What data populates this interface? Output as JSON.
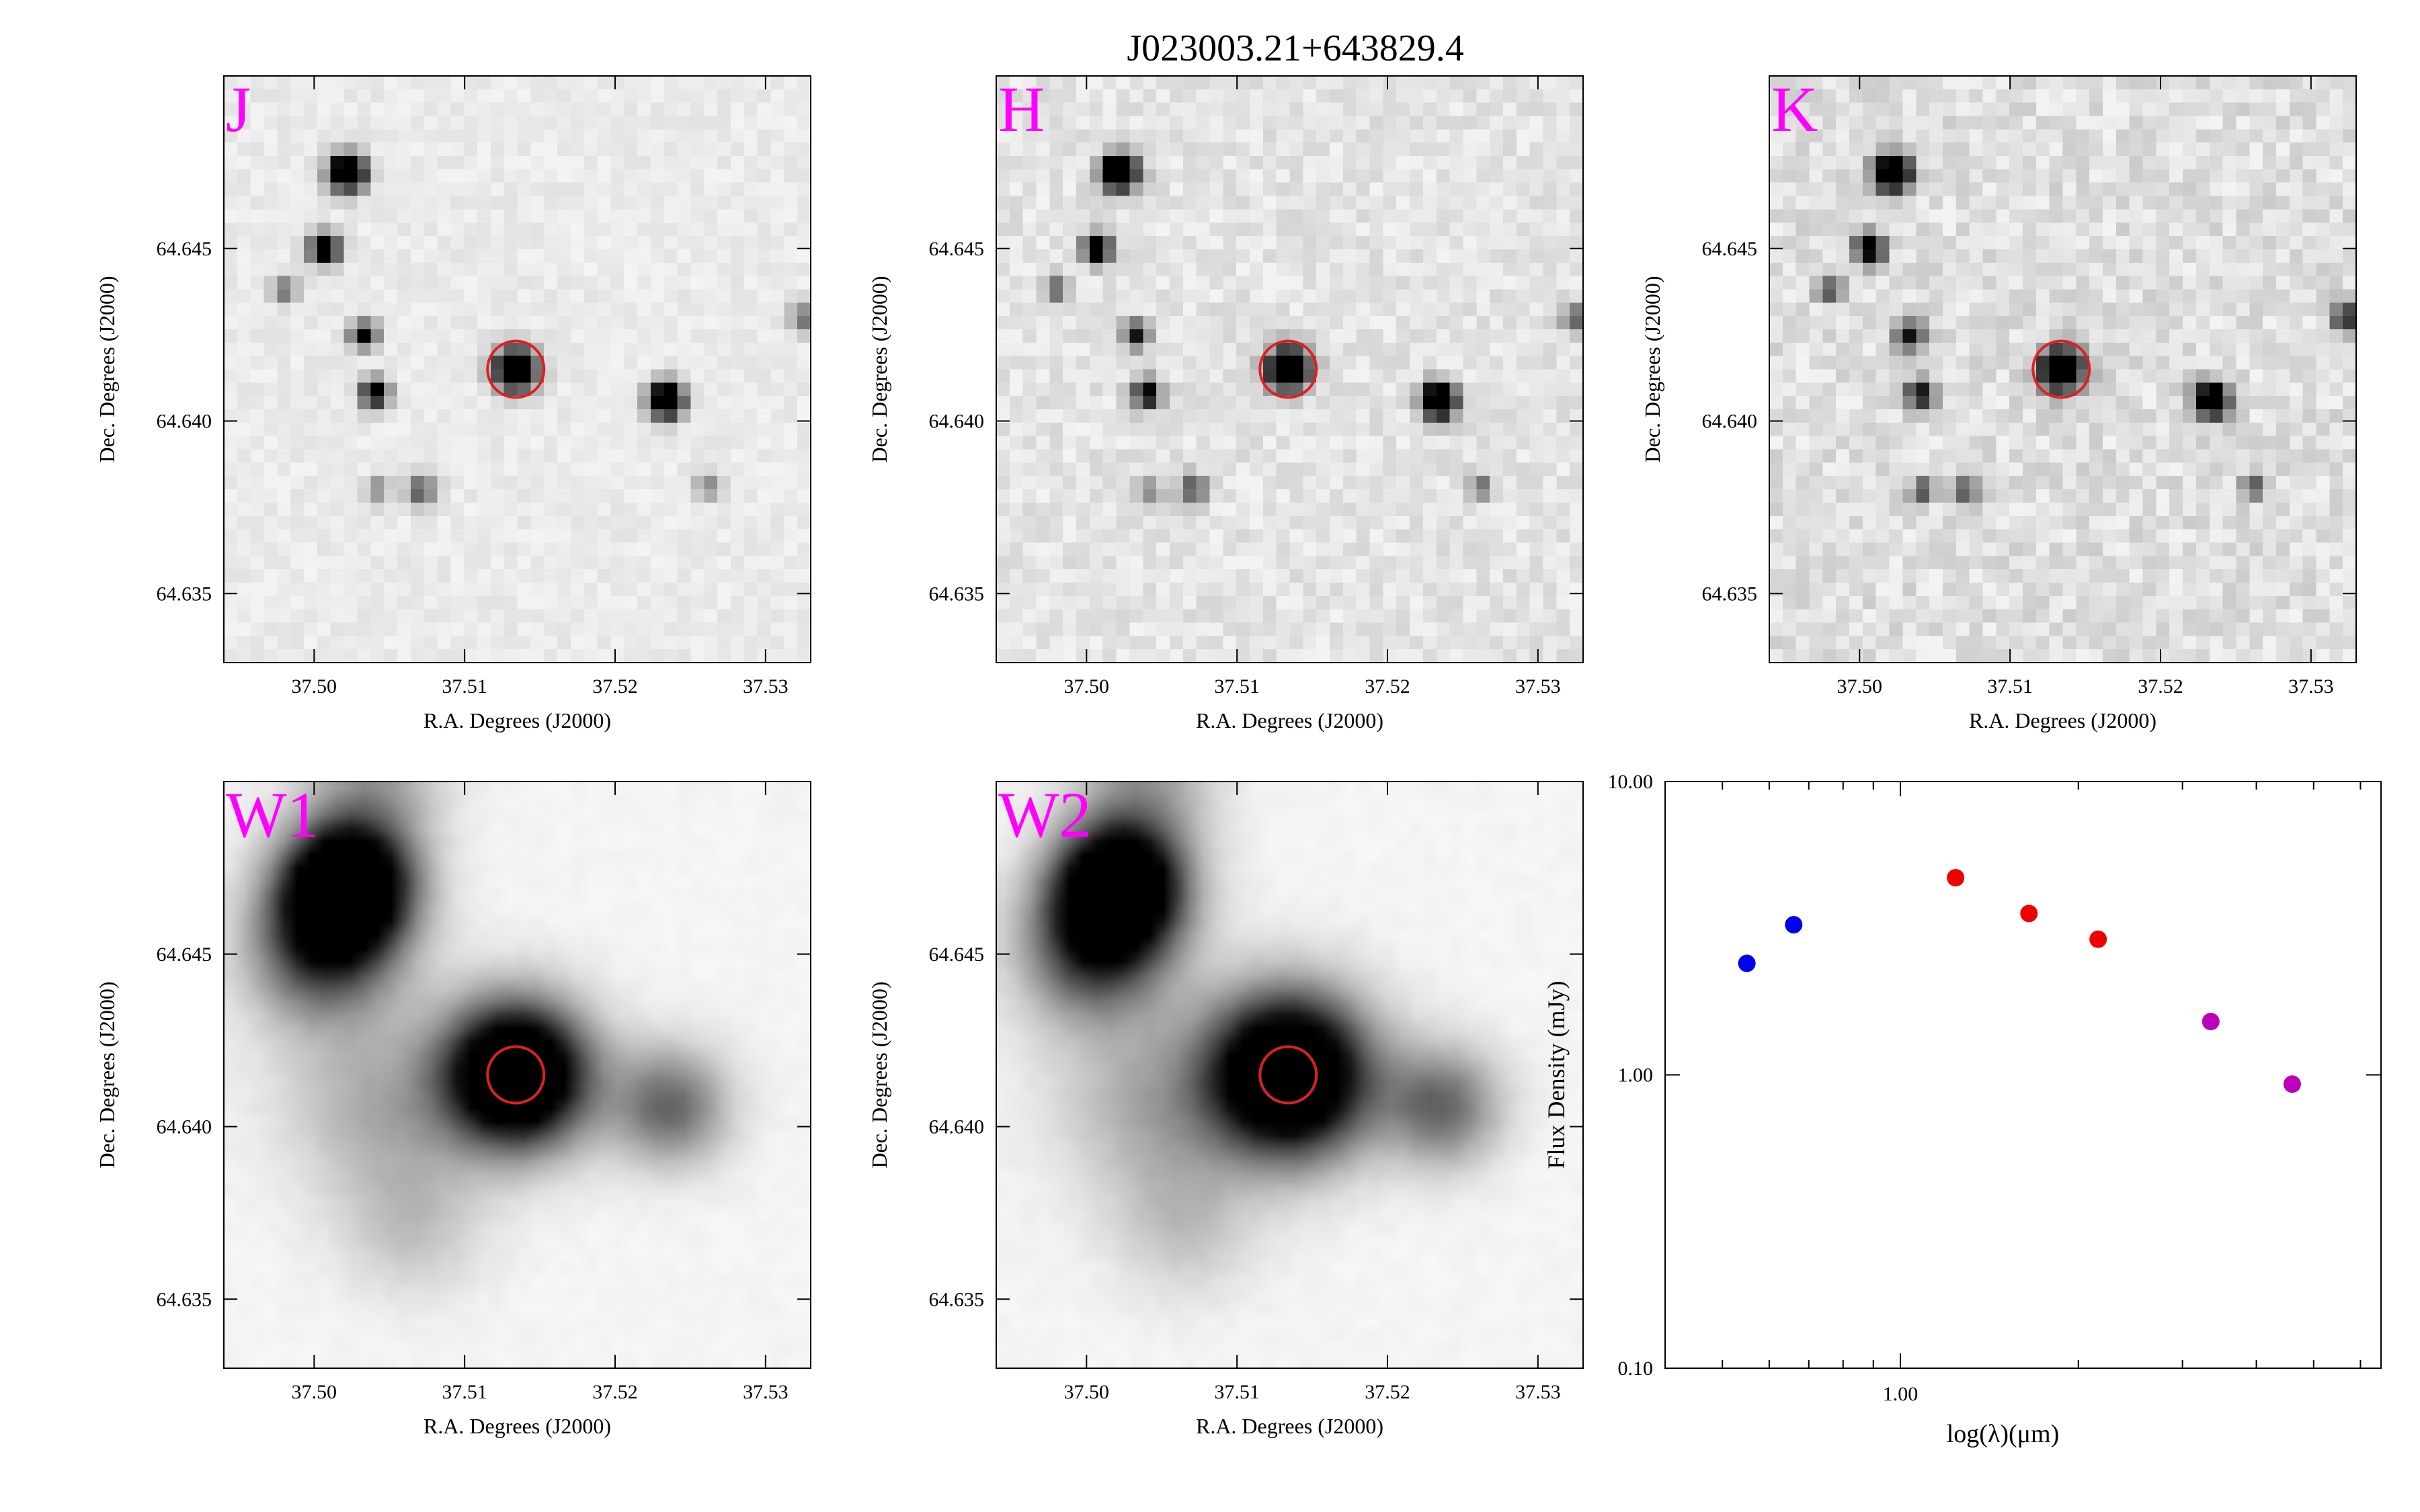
{
  "figure": {
    "title": "J023003.21+643829.4"
  },
  "panel_axes": {
    "xlabel": "R.A. Degrees (J2000)",
    "ylabel": "Dec. Degrees (J2000)",
    "xlim": [
      37.494,
      37.533
    ],
    "ylim": [
      64.633,
      64.65
    ],
    "xticks": [
      "37.50",
      "37.51",
      "37.52",
      "37.53"
    ],
    "xtick_values": [
      37.5,
      37.51,
      37.52,
      37.53
    ],
    "yticks": [
      "64.635",
      "64.640",
      "64.645"
    ],
    "ytick_values": [
      64.635,
      64.64,
      64.645
    ],
    "target": {
      "ra": 37.5134,
      "dec": 64.6415,
      "color": "#e02020"
    }
  },
  "image_panels": [
    {
      "band": "J",
      "style": "sharp",
      "sources": [
        {
          "ra": 37.5022,
          "dec": 64.6472,
          "flux": 1.0,
          "size": 1.0
        },
        {
          "ra": 37.5007,
          "dec": 64.645,
          "flux": 0.85,
          "size": 0.8
        },
        {
          "ra": 37.498,
          "dec": 64.6438,
          "flux": 0.35,
          "size": 0.7
        },
        {
          "ra": 37.5033,
          "dec": 64.6425,
          "flux": 0.6,
          "size": 0.75
        },
        {
          "ra": 37.504,
          "dec": 64.6408,
          "flux": 0.7,
          "size": 0.8
        },
        {
          "ra": 37.5134,
          "dec": 64.6415,
          "flux": 1.0,
          "size": 1.15
        },
        {
          "ra": 37.5234,
          "dec": 64.6406,
          "flux": 1.0,
          "size": 0.95
        },
        {
          "ra": 37.5071,
          "dec": 64.638,
          "flux": 0.4,
          "size": 0.8
        },
        {
          "ra": 37.5042,
          "dec": 64.638,
          "flux": 0.25,
          "size": 0.7
        },
        {
          "ra": 37.5262,
          "dec": 64.6381,
          "flux": 0.25,
          "size": 0.7
        },
        {
          "ra": 37.5325,
          "dec": 64.643,
          "flux": 0.3,
          "size": 0.8
        }
      ]
    },
    {
      "band": "H",
      "style": "sharp",
      "sources": [
        {
          "ra": 37.5022,
          "dec": 64.6472,
          "flux": 1.0,
          "size": 1.0
        },
        {
          "ra": 37.5007,
          "dec": 64.645,
          "flux": 0.8,
          "size": 0.8
        },
        {
          "ra": 37.498,
          "dec": 64.6438,
          "flux": 0.35,
          "size": 0.7
        },
        {
          "ra": 37.5033,
          "dec": 64.6425,
          "flux": 0.55,
          "size": 0.75
        },
        {
          "ra": 37.504,
          "dec": 64.6408,
          "flux": 0.65,
          "size": 0.8
        },
        {
          "ra": 37.5134,
          "dec": 64.6415,
          "flux": 1.0,
          "size": 1.15
        },
        {
          "ra": 37.5234,
          "dec": 64.6406,
          "flux": 1.0,
          "size": 0.95
        },
        {
          "ra": 37.5071,
          "dec": 64.638,
          "flux": 0.4,
          "size": 0.8
        },
        {
          "ra": 37.5042,
          "dec": 64.638,
          "flux": 0.25,
          "size": 0.7
        },
        {
          "ra": 37.5262,
          "dec": 64.6381,
          "flux": 0.3,
          "size": 0.7
        },
        {
          "ra": 37.5325,
          "dec": 64.643,
          "flux": 0.35,
          "size": 0.8
        }
      ]
    },
    {
      "band": "K",
      "style": "sharp",
      "sources": [
        {
          "ra": 37.5022,
          "dec": 64.6472,
          "flux": 1.0,
          "size": 1.0
        },
        {
          "ra": 37.5007,
          "dec": 64.645,
          "flux": 0.75,
          "size": 0.8
        },
        {
          "ra": 37.498,
          "dec": 64.6438,
          "flux": 0.4,
          "size": 0.7
        },
        {
          "ra": 37.5033,
          "dec": 64.6425,
          "flux": 0.55,
          "size": 0.8
        },
        {
          "ra": 37.504,
          "dec": 64.6408,
          "flux": 0.6,
          "size": 0.8
        },
        {
          "ra": 37.5134,
          "dec": 64.6415,
          "flux": 1.0,
          "size": 1.15
        },
        {
          "ra": 37.5234,
          "dec": 64.6406,
          "flux": 0.95,
          "size": 0.95
        },
        {
          "ra": 37.5071,
          "dec": 64.638,
          "flux": 0.4,
          "size": 0.8
        },
        {
          "ra": 37.5042,
          "dec": 64.638,
          "flux": 0.35,
          "size": 0.7
        },
        {
          "ra": 37.5262,
          "dec": 64.6381,
          "flux": 0.35,
          "size": 0.7
        },
        {
          "ra": 37.5325,
          "dec": 64.643,
          "flux": 0.5,
          "size": 0.9
        }
      ]
    },
    {
      "band": "W1",
      "style": "blurred",
      "sources": [
        {
          "ra": 37.5022,
          "dec": 64.647,
          "flux": 1.0,
          "size": 1.4
        },
        {
          "ra": 37.5005,
          "dec": 64.6452,
          "flux": 0.45,
          "size": 1.6
        },
        {
          "ra": 37.5134,
          "dec": 64.6415,
          "flux": 1.0,
          "size": 1.6
        },
        {
          "ra": 37.5236,
          "dec": 64.6406,
          "flux": 0.35,
          "size": 1.3
        },
        {
          "ra": 37.5045,
          "dec": 64.6405,
          "flux": 0.15,
          "size": 2.0
        },
        {
          "ra": 37.5065,
          "dec": 64.6372,
          "flux": 0.12,
          "size": 1.6
        },
        {
          "ra": 37.504,
          "dec": 64.65,
          "flux": 0.2,
          "size": 1.5
        }
      ]
    },
    {
      "band": "W2",
      "style": "blurred",
      "sources": [
        {
          "ra": 37.5022,
          "dec": 64.647,
          "flux": 0.95,
          "size": 1.4
        },
        {
          "ra": 37.5005,
          "dec": 64.6452,
          "flux": 0.45,
          "size": 1.6
        },
        {
          "ra": 37.5134,
          "dec": 64.6415,
          "flux": 1.0,
          "size": 1.8
        },
        {
          "ra": 37.5236,
          "dec": 64.6406,
          "flux": 0.35,
          "size": 1.3
        },
        {
          "ra": 37.5045,
          "dec": 64.6405,
          "flux": 0.15,
          "size": 2.0
        },
        {
          "ra": 37.5065,
          "dec": 64.6372,
          "flux": 0.12,
          "size": 1.6
        },
        {
          "ra": 37.504,
          "dec": 64.65,
          "flux": 0.2,
          "size": 1.5
        }
      ]
    }
  ],
  "chart_data": {
    "type": "scatter",
    "title": "",
    "xlabel": "log(λ)(μm)",
    "ylabel": "Flux Density (mJy)",
    "xscale": "log",
    "yscale": "log",
    "xlim": [
      0.4,
      6.5
    ],
    "ylim": [
      0.1,
      10.0
    ],
    "xticks": [
      "1.00"
    ],
    "xtick_values": [
      1.0
    ],
    "xminor_ticks": [
      0.5,
      0.6,
      0.7,
      0.8,
      0.9,
      2.0,
      3.0,
      4.0,
      5.0,
      6.0
    ],
    "yticks": [
      "10.00",
      "1.00",
      "0.10"
    ],
    "ytick_values": [
      10.0,
      1.0,
      0.1
    ],
    "grid": false,
    "points": [
      {
        "x": 0.55,
        "y": 2.4,
        "color": "#0000ee"
      },
      {
        "x": 0.66,
        "y": 3.25,
        "color": "#0000ee"
      },
      {
        "x": 1.24,
        "y": 4.7,
        "color": "#ee0000"
      },
      {
        "x": 1.65,
        "y": 3.55,
        "color": "#ee0000"
      },
      {
        "x": 2.16,
        "y": 2.9,
        "color": "#ee0000"
      },
      {
        "x": 3.35,
        "y": 1.52,
        "color": "#bb00bb"
      },
      {
        "x": 4.6,
        "y": 0.93,
        "color": "#bb00bb"
      }
    ]
  }
}
